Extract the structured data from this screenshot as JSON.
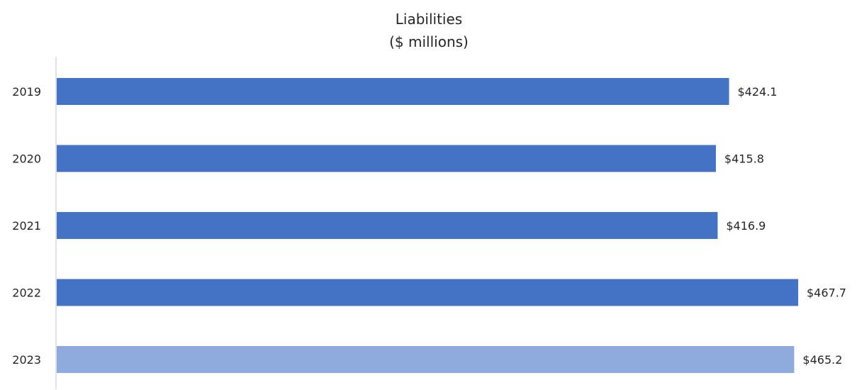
{
  "chart_data": {
    "type": "bar",
    "orientation": "horizontal",
    "title": "Liabilities",
    "subtitle": "($ millions)",
    "xlabel": "",
    "ylabel": "",
    "categories": [
      "2019",
      "2020",
      "2021",
      "2022",
      "2023"
    ],
    "values": [
      424.1,
      415.8,
      416.9,
      467.7,
      465.2
    ],
    "data_labels": [
      "$424.1",
      "$415.8",
      "$416.9",
      "$467.7",
      "$465.2"
    ],
    "bar_colors": [
      "#4472c4",
      "#4472c4",
      "#4472c4",
      "#4472c4",
      "#8faadc"
    ],
    "axis_color": "#d9d9d9",
    "text_color": "#262626",
    "xlim": [
      0,
      467.7
    ],
    "grid": false,
    "legend": "none"
  }
}
